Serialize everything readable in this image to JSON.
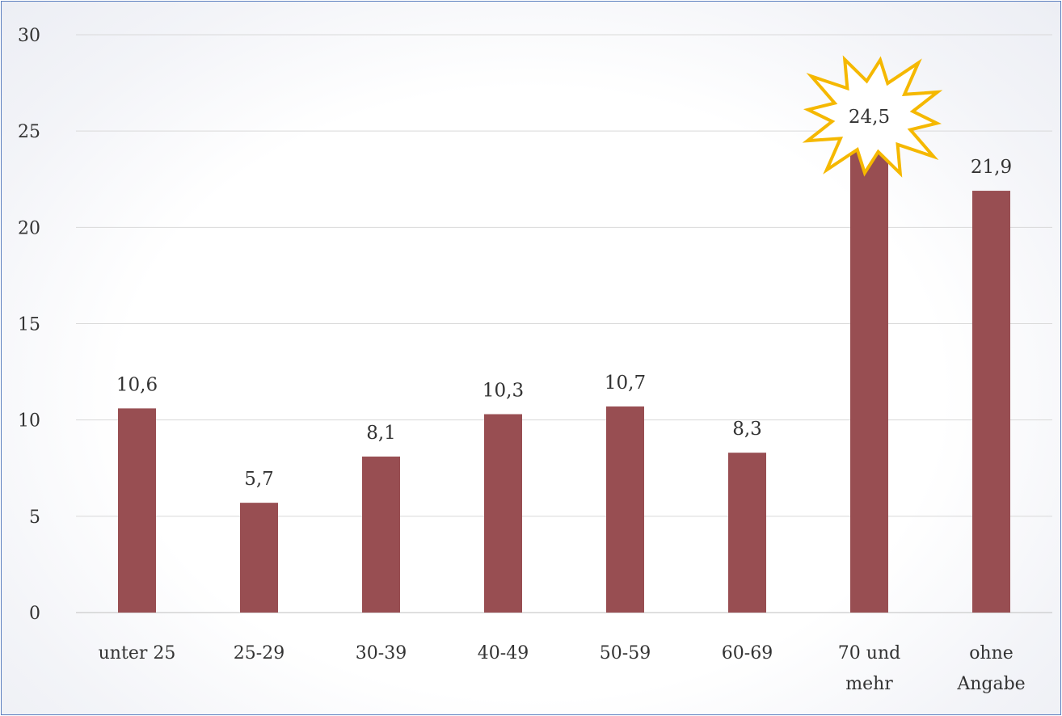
{
  "chart_data": {
    "type": "bar",
    "title": "",
    "xlabel": "",
    "ylabel": "",
    "categories": [
      [
        "unter 25"
      ],
      [
        "25-29"
      ],
      [
        "30-39"
      ],
      [
        "40-49"
      ],
      [
        "50-59"
      ],
      [
        "60-69"
      ],
      [
        "70 und",
        "mehr"
      ],
      [
        "ohne",
        "Angabe"
      ]
    ],
    "values": [
      10.6,
      5.7,
      8.1,
      10.3,
      10.7,
      8.3,
      24.5,
      21.9
    ],
    "value_labels": [
      "10,6",
      "5,7",
      "8,1",
      "10,3",
      "10,7",
      "8,3",
      "24,5",
      "21,9"
    ],
    "ylim": [
      0,
      30
    ],
    "yticks": [
      0,
      5,
      10,
      15,
      20,
      25,
      30
    ],
    "grid": true,
    "legend": "none",
    "highlight_index": 6,
    "colors": {
      "bar": "#984e52",
      "grid": "#d9d9d9",
      "text": "#333333",
      "highlight_star_fill": "#ffffff",
      "highlight_star_stroke": "#f5b800",
      "frame": "#5b7fbf"
    }
  }
}
